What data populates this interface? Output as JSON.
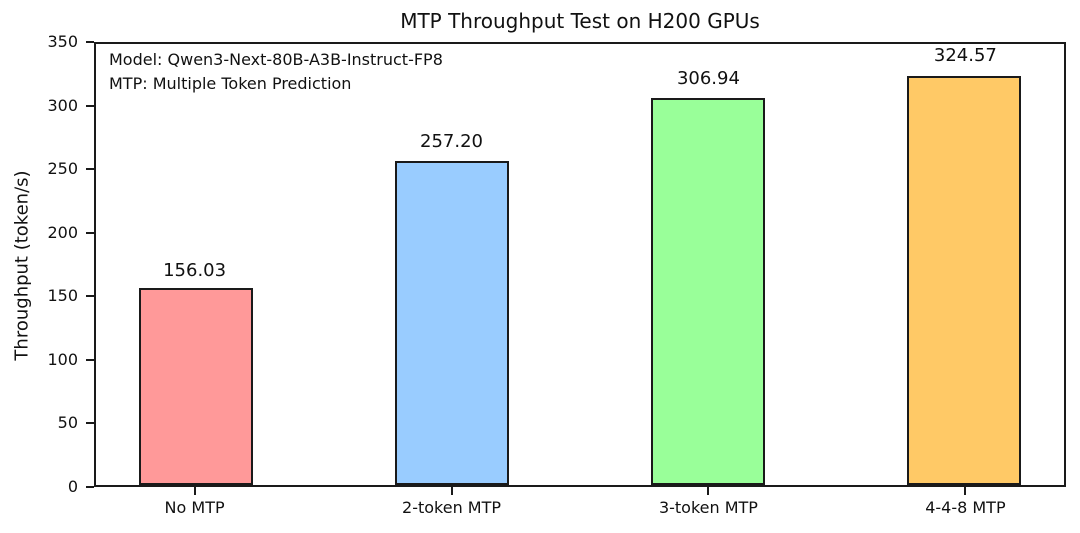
{
  "chart_data": {
    "type": "bar",
    "title": "MTP Throughput Test on H200 GPUs",
    "xlabel": "",
    "ylabel": "Throughput (token/s)",
    "categories": [
      "No MTP",
      "2-token MTP",
      "3-token MTP",
      "4-4-8 MTP"
    ],
    "values": [
      156.03,
      257.2,
      306.94,
      324.57
    ],
    "value_label_format": "2-decimals",
    "bar_colors": [
      "#ff9999",
      "#99ccff",
      "#99ff99",
      "#ffc966"
    ],
    "bar_edge_color": "#1a1a1a",
    "ylim": [
      0,
      350
    ],
    "yticks": [
      0,
      50,
      100,
      150,
      200,
      250,
      300,
      350
    ],
    "grid": false,
    "legend_position": "none",
    "annotations": [
      "Model: Qwen3-Next-80B-A3B-Instruct-FP8",
      "MTP: Multiple Token Prediction"
    ]
  }
}
